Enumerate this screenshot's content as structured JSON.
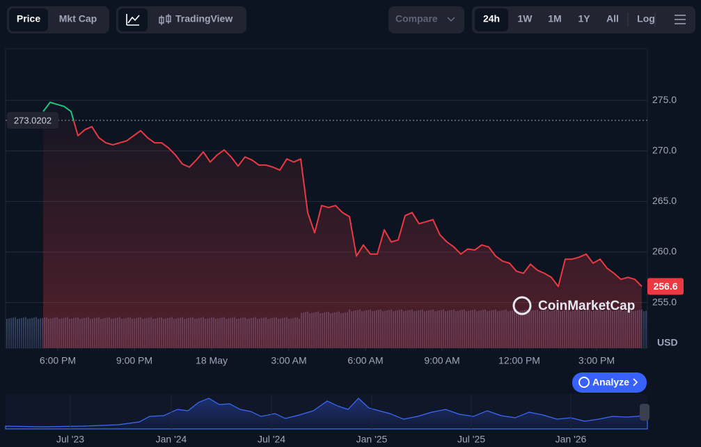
{
  "toolbar": {
    "price": "Price",
    "mktcap": "Mkt Cap",
    "tradingview": "TradingView",
    "compare": "Compare",
    "ranges": [
      "24h",
      "1W",
      "1M",
      "1Y",
      "All"
    ],
    "log": "Log"
  },
  "chart_data": {
    "type": "line",
    "series": [
      {
        "name": "Price",
        "color": "#ea3943",
        "up_color": "#16c784",
        "values": [
          273.9,
          274.8,
          274.6,
          274.4,
          273.9,
          271.5,
          272.1,
          272.4,
          271.3,
          270.8,
          270.6,
          270.8,
          271.0,
          271.5,
          272.0,
          271.3,
          270.8,
          270.8,
          270.3,
          269.6,
          268.7,
          268.4,
          269.1,
          269.9,
          268.9,
          269.6,
          270.1,
          269.4,
          268.5,
          269.4,
          269.1,
          268.6,
          268.6,
          268.4,
          268.1,
          269.2,
          268.9,
          269.2,
          263.9,
          261.9,
          264.6,
          264.4,
          264.6,
          263.9,
          263.5,
          259.6,
          260.7,
          259.8,
          259.8,
          262.2,
          261.0,
          261.2,
          263.6,
          263.9,
          262.8,
          263.0,
          263.2,
          261.7,
          261.0,
          260.5,
          259.8,
          260.3,
          260.2,
          260.7,
          260.5,
          259.6,
          259.1,
          258.9,
          258.1,
          257.9,
          258.8,
          258.2,
          257.9,
          257.5,
          256.6,
          259.3,
          259.3,
          259.5,
          259.8,
          258.9,
          259.3,
          258.4,
          257.9,
          257.3,
          257.5,
          257.3,
          256.6
        ]
      }
    ],
    "reference": {
      "value": 273.0202,
      "label": "273.0202"
    },
    "last_price": {
      "value": 256.6,
      "label": "256.6"
    },
    "xlim": [
      0,
      86
    ],
    "xticks": [
      {
        "value": 2.1,
        "label": "6:00 PM"
      },
      {
        "value": 13.1,
        "label": "9:00 PM"
      },
      {
        "value": 24.2,
        "label": "18 May"
      },
      {
        "value": 35.3,
        "label": "3:00 AM"
      },
      {
        "value": 46.3,
        "label": "6:00 AM"
      },
      {
        "value": 57.3,
        "label": "9:00 AM"
      },
      {
        "value": 68.4,
        "label": "12:00 PM"
      },
      {
        "value": 79.5,
        "label": "3:00 PM"
      }
    ],
    "ylim": [
      250.5,
      280.1
    ],
    "yticks": [
      {
        "value": 255,
        "label": "255.0"
      },
      {
        "value": 260,
        "label": "260.0"
      },
      {
        "value": 265,
        "label": "265.0"
      },
      {
        "value": 270,
        "label": "270.0"
      },
      {
        "value": 275,
        "label": "275.0"
      }
    ],
    "y_unit": "USD",
    "grid": true
  },
  "watermark": "CoinMarketCap",
  "analyze": "Analyze",
  "navigator": {
    "labels": [
      "Jul '23",
      "Jan '24",
      "Jul '24",
      "Jan '25",
      "Jul '25",
      "Jan '26"
    ]
  }
}
